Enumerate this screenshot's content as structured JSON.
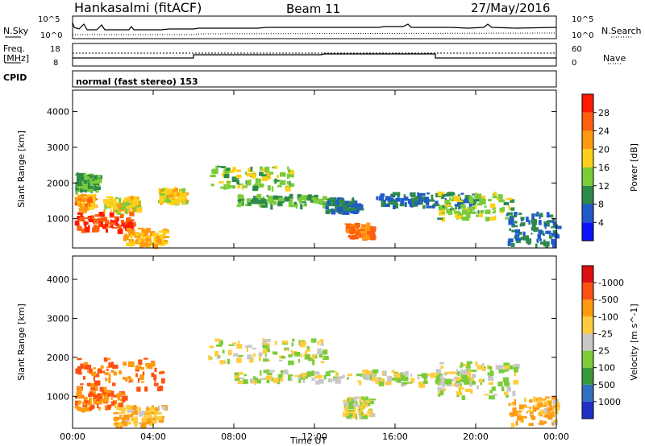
{
  "header": {
    "radar": "Hankasalmi (fitACF)",
    "beam": "Beam 11",
    "date": "27/May/2016"
  },
  "top_panels": {
    "nsky_label": "N.Sky",
    "nsky_ticks": [
      "10^5",
      "10^0"
    ],
    "nsearch_label": "N.Search",
    "nsearch_ticks": [
      "10^5",
      "10^0"
    ],
    "freq_label": "Freq.",
    "freq_unit": "[MHz]",
    "freq_ticks": [
      "18",
      "8"
    ],
    "nave_label": "Nave",
    "nave_ticks": [
      "60",
      "0"
    ],
    "cpid_label": "CPID",
    "cpid_text": "normal (fast stereo) 153"
  },
  "chart_data": [
    {
      "type": "heatmap",
      "ylabel": "Slant Range [km]",
      "xlabel": "Time UT",
      "x_ticks": [
        "00:00",
        "04:00",
        "08:00",
        "12:00",
        "16:00",
        "20:00",
        "00:00"
      ],
      "x_range_hours": [
        0,
        24
      ],
      "y_ticks": [
        "1000",
        "2000",
        "3000",
        "4000"
      ],
      "ylim": [
        180,
        4600
      ],
      "colorbar": {
        "label": "Power [dB]",
        "ticks": [
          "4",
          "8",
          "12",
          "16",
          "20",
          "24",
          "28"
        ],
        "colors": [
          "#0a14ff",
          "#1f5ac8",
          "#2e8a4a",
          "#7acc3a",
          "#ffd01a",
          "#ff9a10",
          "#ff6010",
          "#ff1a00"
        ]
      },
      "regions": [
        {
          "t0": 0.1,
          "t1": 3.0,
          "r0": 700,
          "r1": 1200,
          "level": 28
        },
        {
          "t0": 0.1,
          "t1": 1.0,
          "r0": 1300,
          "r1": 1700,
          "level": 22
        },
        {
          "t0": 1.5,
          "t1": 3.2,
          "r0": 1250,
          "r1": 1650,
          "level": 18
        },
        {
          "t0": 2.5,
          "t1": 4.6,
          "r0": 300,
          "r1": 750,
          "level": 20
        },
        {
          "t0": 0.1,
          "t1": 1.2,
          "r0": 1800,
          "r1": 2300,
          "level": 12
        },
        {
          "t0": 4.2,
          "t1": 5.5,
          "r0": 1500,
          "r1": 1900,
          "level": 18
        },
        {
          "t0": 6.8,
          "t1": 10.8,
          "r0": 1900,
          "r1": 2500,
          "level": 14
        },
        {
          "t0": 8.0,
          "t1": 12.5,
          "r0": 1400,
          "r1": 1700,
          "level": 12
        },
        {
          "t0": 12.5,
          "t1": 14.2,
          "r0": 1200,
          "r1": 1600,
          "level": 8
        },
        {
          "t0": 13.5,
          "t1": 14.8,
          "r0": 500,
          "r1": 900,
          "level": 24
        },
        {
          "t0": 15.0,
          "t1": 20.0,
          "r0": 1350,
          "r1": 1750,
          "level": 8
        },
        {
          "t0": 18.0,
          "t1": 21.8,
          "r0": 1000,
          "r1": 1800,
          "level": 14
        },
        {
          "t0": 21.5,
          "t1": 24.0,
          "r0": 300,
          "r1": 1200,
          "level": 8
        }
      ]
    },
    {
      "type": "heatmap",
      "ylabel": "Slant Range [km]",
      "xlabel": "Time UT",
      "x_ticks": [
        "00:00",
        "04:00",
        "08:00",
        "12:00",
        "16:00",
        "20:00",
        "00:00"
      ],
      "x_range_hours": [
        0,
        24
      ],
      "y_ticks": [
        "1000",
        "2000",
        "3000",
        "4000"
      ],
      "ylim": [
        180,
        4600
      ],
      "colorbar": {
        "label": "Velocity [m s^-1]",
        "ticks": [
          "1000",
          "500",
          "100",
          "25",
          "-25",
          "-100",
          "-500",
          "-1000"
        ],
        "colors": [
          "#2030c8",
          "#3070c0",
          "#3a9a3a",
          "#7ccc3a",
          "#c8c8c8",
          "#ffcc40",
          "#ff9a10",
          "#ff5010",
          "#e01010"
        ]
      },
      "regions": [
        {
          "t0": 0.1,
          "t1": 4.4,
          "r0": 1200,
          "r1": 2000,
          "level": -500
        },
        {
          "t0": 0.1,
          "t1": 2.5,
          "r0": 700,
          "r1": 1200,
          "level": -500
        },
        {
          "t0": 2.0,
          "t1": 4.6,
          "r0": 300,
          "r1": 800,
          "level": -100
        },
        {
          "t0": 6.6,
          "t1": 12.5,
          "r0": 1900,
          "r1": 2500,
          "level": 0
        },
        {
          "t0": 8.0,
          "t1": 15.0,
          "r0": 1400,
          "r1": 1700,
          "level": 0
        },
        {
          "t0": 13.4,
          "t1": 14.8,
          "r0": 500,
          "r1": 1000,
          "level": 0
        },
        {
          "t0": 15.0,
          "t1": 20.0,
          "r0": 1350,
          "r1": 1700,
          "level": 0
        },
        {
          "t0": 18.0,
          "t1": 22.0,
          "r0": 1000,
          "r1": 1900,
          "level": 0
        },
        {
          "t0": 21.5,
          "t1": 24.0,
          "r0": 300,
          "r1": 1000,
          "level": -100
        }
      ]
    }
  ]
}
